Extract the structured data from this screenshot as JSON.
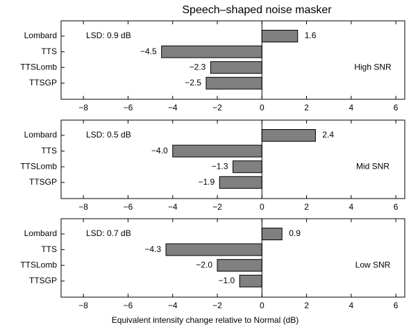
{
  "chart_data": [
    {
      "type": "bar",
      "orientation": "horizontal",
      "title": "Speech–shaped noise masker",
      "categories": [
        "Lombard",
        "TTS",
        "TTSLomb",
        "TTSGP"
      ],
      "values": [
        1.6,
        -4.5,
        -2.3,
        -2.5
      ],
      "value_labels": [
        "1.6",
        "−4.5",
        "−2.3",
        "−2.5"
      ],
      "annotation": "LSD:  0.9 dB",
      "condition": "High SNR",
      "color": "#808080",
      "xlim": [
        -9,
        6.4
      ],
      "xticks": [
        {
          "value": -8,
          "label": "−8"
        },
        {
          "value": -6,
          "label": "−6"
        },
        {
          "value": -4,
          "label": "−4"
        },
        {
          "value": -2,
          "label": "−2"
        },
        0,
        2,
        4,
        6
      ]
    },
    {
      "type": "bar",
      "orientation": "horizontal",
      "categories": [
        "Lombard",
        "TTS",
        "TTSLomb",
        "TTSGP"
      ],
      "values": [
        2.4,
        -4.0,
        -1.3,
        -1.9
      ],
      "value_labels": [
        "2.4",
        "−4.0",
        "−1.3",
        "−1.9"
      ],
      "annotation": "LSD:  0.5 dB",
      "condition": "Mid SNR",
      "color": "#808080",
      "xlim": [
        -9,
        6.4
      ],
      "xticks": [
        {
          "value": -8,
          "label": "−8"
        },
        {
          "value": -6,
          "label": "−6"
        },
        {
          "value": -4,
          "label": "−4"
        },
        {
          "value": -2,
          "label": "−2"
        },
        0,
        2,
        4,
        6
      ]
    },
    {
      "type": "bar",
      "orientation": "horizontal",
      "categories": [
        "Lombard",
        "TTS",
        "TTSLomb",
        "TTSGP"
      ],
      "values": [
        0.9,
        -4.3,
        -2.0,
        -1.0
      ],
      "value_labels": [
        "0.9",
        "−4.3",
        "−2.0",
        "−1.0"
      ],
      "annotation": "LSD:  0.7 dB",
      "condition": "Low SNR",
      "color": "#808080",
      "xlabel": "Equivalent intensity change relative to Normal (dB)",
      "xlim": [
        -9,
        6.4
      ],
      "xticks": [
        {
          "value": -8,
          "label": "−8"
        },
        {
          "value": -6,
          "label": "−6"
        },
        {
          "value": -4,
          "label": "−4"
        },
        {
          "value": -2,
          "label": "−2"
        },
        0,
        2,
        4,
        6
      ]
    }
  ]
}
